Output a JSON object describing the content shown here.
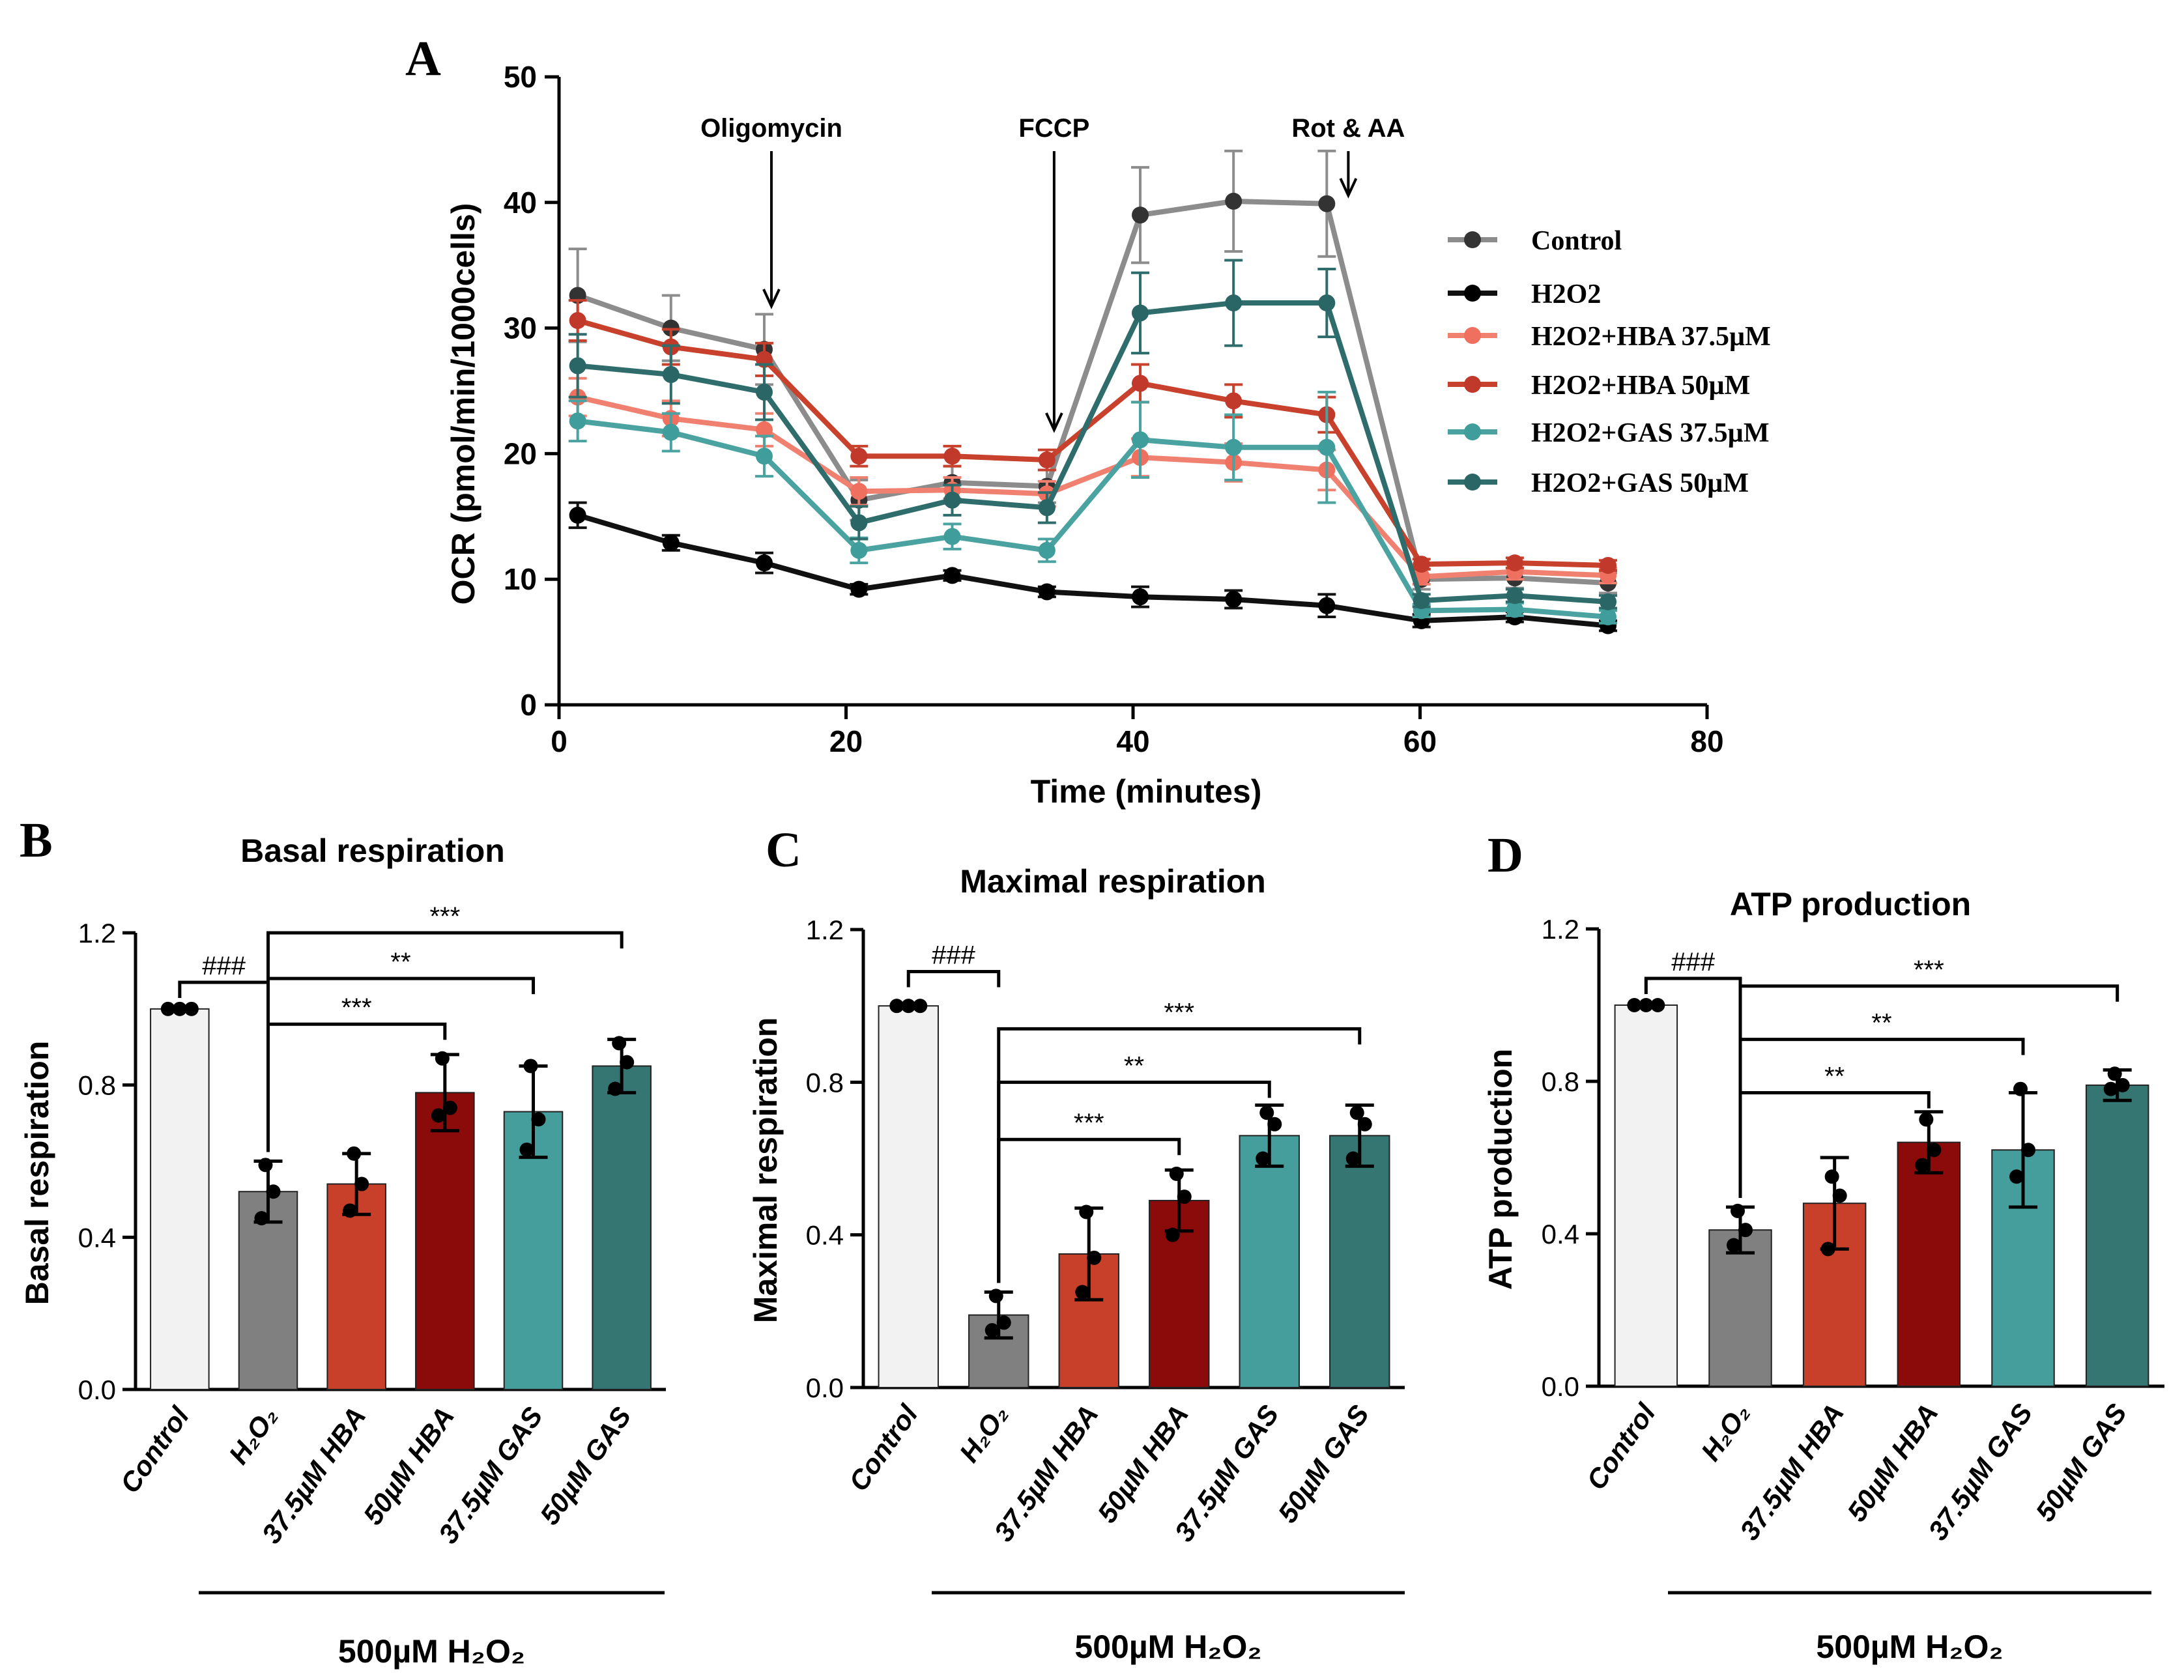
{
  "chart_data": [
    {
      "panel": "A",
      "type": "line",
      "title": "",
      "xlabel": "Time (minutes)",
      "ylabel": "OCR (pmol/min/1000cells)",
      "xlim": [
        0,
        80
      ],
      "ylim": [
        0,
        50
      ],
      "xticks": [
        0,
        20,
        40,
        60,
        80
      ],
      "yticks": [
        0,
        10,
        20,
        30,
        40,
        50
      ],
      "grid": false,
      "legend_position": "right",
      "x": [
        1.3,
        7.8,
        14.3,
        20.9,
        27.4,
        34.0,
        40.5,
        47.0,
        53.5,
        60.1,
        66.6,
        73.1
      ],
      "annotations": [
        {
          "text": "Oligomycin",
          "x": 14.8
        },
        {
          "text": "FCCP",
          "x": 34.5
        },
        {
          "text": "Rot & AA",
          "x": 55.0
        }
      ],
      "series": [
        {
          "name": "Control",
          "color": "#8c8c8c",
          "marker": "#333333",
          "values": [
            32.6,
            30.0,
            28.3,
            16.3,
            17.7,
            17.4,
            39.0,
            40.1,
            39.9,
            10.0,
            10.1,
            9.7
          ],
          "errors": [
            3.7,
            2.6,
            2.8,
            1.6,
            1.3,
            1.3,
            3.8,
            4.0,
            4.2,
            0.8,
            0.8,
            0.8
          ]
        },
        {
          "name": "H2O2",
          "color": "#111111",
          "marker": "#000000",
          "values": [
            15.1,
            12.9,
            11.3,
            9.2,
            10.3,
            9.0,
            8.6,
            8.4,
            7.9,
            6.7,
            7.0,
            6.3
          ],
          "errors": [
            1.0,
            0.6,
            0.8,
            0.4,
            0.4,
            0.4,
            0.8,
            0.7,
            0.9,
            0.5,
            0.4,
            0.4
          ]
        },
        {
          "name": "H2O2+HBA 37.5µM",
          "color": "#f08070",
          "marker": "#f07060",
          "values": [
            24.5,
            22.8,
            21.9,
            17.0,
            17.1,
            16.8,
            19.7,
            19.3,
            18.7,
            10.2,
            10.6,
            10.3
          ],
          "errors": [
            1.5,
            1.4,
            1.3,
            1.1,
            1.0,
            1.0,
            1.5,
            1.5,
            1.6,
            0.6,
            0.6,
            0.6
          ]
        },
        {
          "name": "H2O2+HBA 50µM",
          "color": "#c8412c",
          "marker": "#c0392b",
          "values": [
            30.6,
            28.5,
            27.5,
            19.8,
            19.8,
            19.5,
            25.6,
            24.2,
            23.1,
            11.2,
            11.3,
            11.1
          ],
          "errors": [
            1.6,
            1.4,
            1.3,
            0.8,
            0.8,
            0.8,
            1.5,
            1.3,
            1.4,
            0.4,
            0.4,
            0.4
          ]
        },
        {
          "name": "H2O2+GAS 37.5µM",
          "color": "#4aa3a0",
          "marker": "#3f9e9b",
          "values": [
            22.6,
            21.7,
            19.8,
            12.3,
            13.4,
            12.3,
            21.1,
            20.5,
            20.5,
            7.5,
            7.6,
            7.0
          ],
          "errors": [
            1.6,
            1.5,
            1.6,
            1.0,
            1.0,
            0.9,
            3.0,
            2.6,
            4.4,
            0.5,
            0.5,
            0.5
          ]
        },
        {
          "name": "H2O2+GAS 50µM",
          "color": "#2f6d6c",
          "marker": "#2a6665",
          "values": [
            27.0,
            26.3,
            24.9,
            14.5,
            16.3,
            15.7,
            31.2,
            32.0,
            32.0,
            8.3,
            8.7,
            8.2
          ],
          "errors": [
            2.5,
            2.3,
            2.2,
            1.3,
            1.2,
            1.2,
            3.2,
            3.4,
            2.7,
            0.5,
            0.5,
            0.5
          ]
        }
      ]
    },
    {
      "panel": "B",
      "type": "bar",
      "title": "Basal respiration",
      "ylabel": "Basal respiration",
      "ylim": [
        0,
        1.2
      ],
      "yticks": [
        "0.0",
        "0.4",
        "0.8",
        "1.2"
      ],
      "categories": [
        "Control",
        "H₂O₂",
        "37.5µM HBA",
        "50µM HBA",
        "37.5µM GAS",
        "50µM GAS"
      ],
      "values": [
        1.0,
        0.52,
        0.54,
        0.78,
        0.73,
        0.85
      ],
      "errors": [
        0.0,
        0.08,
        0.08,
        0.1,
        0.12,
        0.07
      ],
      "points": [
        [
          1.0,
          1.0,
          1.0
        ],
        [
          0.45,
          0.52,
          0.59
        ],
        [
          0.47,
          0.54,
          0.62
        ],
        [
          0.72,
          0.74,
          0.87
        ],
        [
          0.63,
          0.71,
          0.85
        ],
        [
          0.79,
          0.86,
          0.91
        ]
      ],
      "colors": [
        "#f2f2f2",
        "#808080",
        "#c9402a",
        "#8b0a0a",
        "#469e9c",
        "#357572"
      ],
      "group_label": "500µM H₂O₂",
      "significance": [
        {
          "from": 0,
          "to": 1,
          "text": "###",
          "y": 1.07
        },
        {
          "from": 1,
          "to": 3,
          "text": "***",
          "y": 0.96
        },
        {
          "from": 1,
          "to": 4,
          "text": "**",
          "y": 1.08
        },
        {
          "from": 1,
          "to": 5,
          "text": "***",
          "y": 1.2
        }
      ]
    },
    {
      "panel": "C",
      "type": "bar",
      "title": "Maximal respiration",
      "ylabel": "Maximal respiration",
      "ylim": [
        0,
        1.2
      ],
      "yticks": [
        "0.0",
        "0.4",
        "0.8",
        "1.2"
      ],
      "categories": [
        "Control",
        "H₂O₂",
        "37.5µM HBA",
        "50µM HBA",
        "37.5µM GAS",
        "50µM GAS"
      ],
      "values": [
        1.0,
        0.19,
        0.35,
        0.49,
        0.66,
        0.66
      ],
      "errors": [
        0.0,
        0.06,
        0.12,
        0.08,
        0.08,
        0.08
      ],
      "points": [
        [
          1.0,
          1.0,
          1.0
        ],
        [
          0.15,
          0.17,
          0.24
        ],
        [
          0.25,
          0.34,
          0.46
        ],
        [
          0.4,
          0.5,
          0.56
        ],
        [
          0.6,
          0.69,
          0.72
        ],
        [
          0.6,
          0.69,
          0.72
        ]
      ],
      "colors": [
        "#f2f2f2",
        "#808080",
        "#c9402a",
        "#8b0a0a",
        "#469e9c",
        "#357572"
      ],
      "group_label": "500µM H₂O₂",
      "significance": [
        {
          "from": 0,
          "to": 1,
          "text": "###",
          "y": 1.09
        },
        {
          "from": 1,
          "to": 3,
          "text": "***",
          "y": 0.65
        },
        {
          "from": 1,
          "to": 4,
          "text": "**",
          "y": 0.8
        },
        {
          "from": 1,
          "to": 5,
          "text": "***",
          "y": 0.94
        }
      ]
    },
    {
      "panel": "D",
      "type": "bar",
      "title": "ATP production",
      "ylabel": "ATP production",
      "ylim": [
        0,
        1.2
      ],
      "yticks": [
        "0.0",
        "0.4",
        "0.8",
        "1.2"
      ],
      "categories": [
        "Control",
        "H₂O₂",
        "37.5µM HBA",
        "50µM HBA",
        "37.5µM GAS",
        "50µM GAS"
      ],
      "values": [
        1.0,
        0.41,
        0.48,
        0.64,
        0.62,
        0.79
      ],
      "errors": [
        0.0,
        0.06,
        0.12,
        0.08,
        0.15,
        0.04
      ],
      "points": [
        [
          1.0,
          1.0,
          1.0
        ],
        [
          0.37,
          0.41,
          0.46
        ],
        [
          0.36,
          0.5,
          0.55
        ],
        [
          0.58,
          0.62,
          0.7
        ],
        [
          0.55,
          0.62,
          0.78
        ],
        [
          0.78,
          0.79,
          0.82
        ]
      ],
      "colors": [
        "#f2f2f2",
        "#808080",
        "#c9402a",
        "#8b0a0a",
        "#469e9c",
        "#357572"
      ],
      "group_label": "500µM H₂O₂",
      "significance": [
        {
          "from": 0,
          "to": 1,
          "text": "###",
          "y": 1.07
        },
        {
          "from": 1,
          "to": 3,
          "text": "**",
          "y": 0.77
        },
        {
          "from": 1,
          "to": 4,
          "text": "**",
          "y": 0.91
        },
        {
          "from": 1,
          "to": 5,
          "text": "***",
          "y": 1.05
        }
      ]
    }
  ]
}
